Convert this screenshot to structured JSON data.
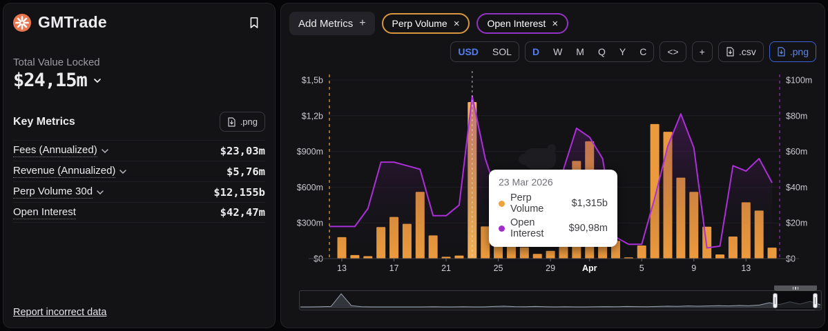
{
  "brand": {
    "name": "GMTrade"
  },
  "tvl": {
    "label": "Total Value Locked",
    "value": "$24,15m"
  },
  "key_metrics": {
    "title": "Key Metrics",
    "png_button": ".png",
    "rows": [
      {
        "label": "Fees (Annualized)",
        "value": "$23,03m"
      },
      {
        "label": "Revenue (Annualized)",
        "value": "$5,76m"
      },
      {
        "label": "Perp Volume 30d",
        "value": "$12,155b"
      },
      {
        "label": "Open Interest",
        "value": "$42,47m"
      }
    ]
  },
  "report_link": "Report incorrect data",
  "chart_header": {
    "add_metrics_label": "Add Metrics",
    "add_metrics_plus": "+",
    "chips": [
      {
        "label": "Perp Volume",
        "close": "×",
        "color": "#d9983f"
      },
      {
        "label": "Open Interest",
        "close": "×",
        "color": "#9333c4"
      }
    ],
    "currency_options": [
      "USD",
      "SOL"
    ],
    "currency_selected": "USD",
    "interval_options": [
      "D",
      "W",
      "M",
      "Q",
      "Y",
      "C"
    ],
    "interval_selected": "D",
    "embed_button": "<>",
    "add_button": "+",
    "csv_button": ".csv",
    "png_button": ".png"
  },
  "tooltip": {
    "date": "23 Mar 2026",
    "rows": [
      {
        "name": "Perp Volume",
        "value": "$1,315b",
        "color": "#efa33d"
      },
      {
        "name": "Open Interest",
        "value": "$90,98m",
        "color": "#a22cc9"
      }
    ]
  },
  "chart_data": {
    "type": "bar",
    "note": "dual-axis combo: bars = Perp Volume (left axis, $m), line+area = Open Interest (right axis, $m)",
    "categories": [
      "Mar 13",
      "Mar 14",
      "Mar 15",
      "Mar 16",
      "Mar 17",
      "Mar 18",
      "Mar 19",
      "Mar 20",
      "Mar 21",
      "Mar 22",
      "Mar 23",
      "Mar 24",
      "Mar 25",
      "Mar 26",
      "Mar 27",
      "Mar 28",
      "Mar 29",
      "Mar 30",
      "Mar 31",
      "Apr 1",
      "Apr 2",
      "Apr 3",
      "Apr 4",
      "Apr 5",
      "Apr 6",
      "Apr 7",
      "Apr 8",
      "Apr 9",
      "Apr 10",
      "Apr 11",
      "Apr 12",
      "Apr 13",
      "Apr 14",
      "Apr 15"
    ],
    "series": [
      {
        "name": "Perp Volume",
        "type": "bar",
        "axis": "left",
        "color": "#ec9a3e",
        "hover_color": "#f4b158",
        "values_m": [
          180,
          30,
          20,
          265,
          350,
          292,
          560,
          195,
          15,
          25,
          1315,
          270,
          430,
          320,
          95,
          40,
          65,
          260,
          820,
          985,
          450,
          150,
          10,
          110,
          1130,
          1065,
          680,
          560,
          268,
          35,
          185,
          473,
          403,
          92
        ]
      },
      {
        "name": "Open Interest",
        "type": "line",
        "axis": "right",
        "color": "#ac30d8",
        "fill_top": "rgba(138,34,168,0.42)",
        "values_m": [
          18,
          18,
          28,
          54,
          54,
          52,
          50,
          24,
          24,
          30,
          90.98,
          56,
          34,
          15,
          10,
          11,
          20,
          50,
          73,
          68,
          56,
          12,
          8,
          8,
          34,
          63,
          81,
          62,
          6,
          7,
          52,
          49,
          56,
          42.47
        ]
      }
    ],
    "hover_index": 10,
    "left_axis": {
      "ticks": [
        "$0",
        "$300m",
        "$600m",
        "$900m",
        "$1,2b",
        "$1,5b"
      ],
      "max_m": 1500
    },
    "right_axis": {
      "ticks": [
        "$0",
        "$20m",
        "$40m",
        "$60m",
        "$80m",
        "$100m"
      ],
      "max_m": 100
    },
    "x_ticks": [
      {
        "label": "13",
        "index": 0,
        "bold": false
      },
      {
        "label": "17",
        "index": 4,
        "bold": false
      },
      {
        "label": "21",
        "index": 8,
        "bold": false
      },
      {
        "label": "25",
        "index": 12,
        "bold": false
      },
      {
        "label": "29",
        "index": 16,
        "bold": false
      },
      {
        "label": "Apr",
        "index": 19,
        "bold": true
      },
      {
        "label": "5",
        "index": 23,
        "bold": false
      },
      {
        "label": "9",
        "index": 27,
        "bold": false
      },
      {
        "label": "13",
        "index": 31,
        "bold": false
      }
    ],
    "grid": true,
    "legend_position": "chips-top-left"
  },
  "minimap": {
    "spark": [
      0.05,
      0.05,
      0.06,
      0.08,
      1.0,
      0.14,
      0.06,
      0.05,
      0.05,
      0.05,
      0.05,
      0.05,
      0.05,
      0.06,
      0.05,
      0.05,
      0.06,
      0.05,
      0.05,
      0.08,
      0.1,
      0.07,
      0.06,
      0.08,
      0.06,
      0.05,
      0.06,
      0.05,
      0.05,
      0.06,
      0.07,
      0.06,
      0.08,
      0.07,
      0.06,
      0.08,
      0.1,
      0.09,
      0.12,
      0.1,
      0.12,
      0.14,
      0.12,
      0.15,
      0.13,
      0.18,
      0.35,
      0.22,
      0.42,
      0.25,
      0.45,
      0.2
    ]
  }
}
